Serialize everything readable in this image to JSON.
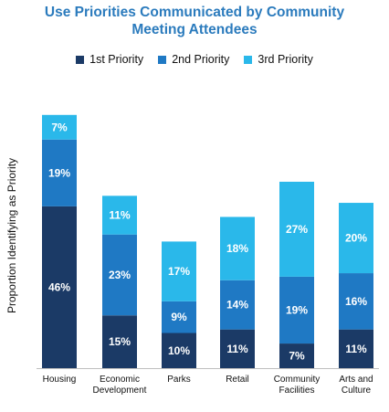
{
  "chart_data": {
    "type": "bar",
    "stacked": true,
    "title": [
      "Use Priorities Communicated by Community",
      "Meeting Attendees"
    ],
    "ylabel": "Proportion Identifying as Priority",
    "ylim": [
      0,
      80
    ],
    "grid": false,
    "legend_position": "top",
    "categories": [
      [
        "Housing"
      ],
      [
        "Economic",
        "Development"
      ],
      [
        "Parks"
      ],
      [
        "Retail"
      ],
      [
        "Community",
        "Facilities"
      ],
      [
        "Arts and",
        "Culture"
      ]
    ],
    "series": [
      {
        "name": "1st Priority",
        "color": "#1b3a66",
        "values": [
          46,
          15,
          10,
          11,
          7,
          11
        ],
        "labels": [
          "46%",
          "15%",
          "10%",
          "11%",
          "7%",
          "11%"
        ]
      },
      {
        "name": "2nd Priority",
        "color": "#1f79c4",
        "values": [
          19,
          23,
          9,
          14,
          19,
          16
        ],
        "labels": [
          "19%",
          "23%",
          "9%",
          "14%",
          "19%",
          "16%"
        ]
      },
      {
        "name": "3rd Priority",
        "color": "#2ab8ea",
        "values": [
          7,
          11,
          17,
          18,
          27,
          20
        ],
        "labels": [
          "7%",
          "11%",
          "17%",
          "18%",
          "27%",
          "20%"
        ]
      }
    ]
  }
}
